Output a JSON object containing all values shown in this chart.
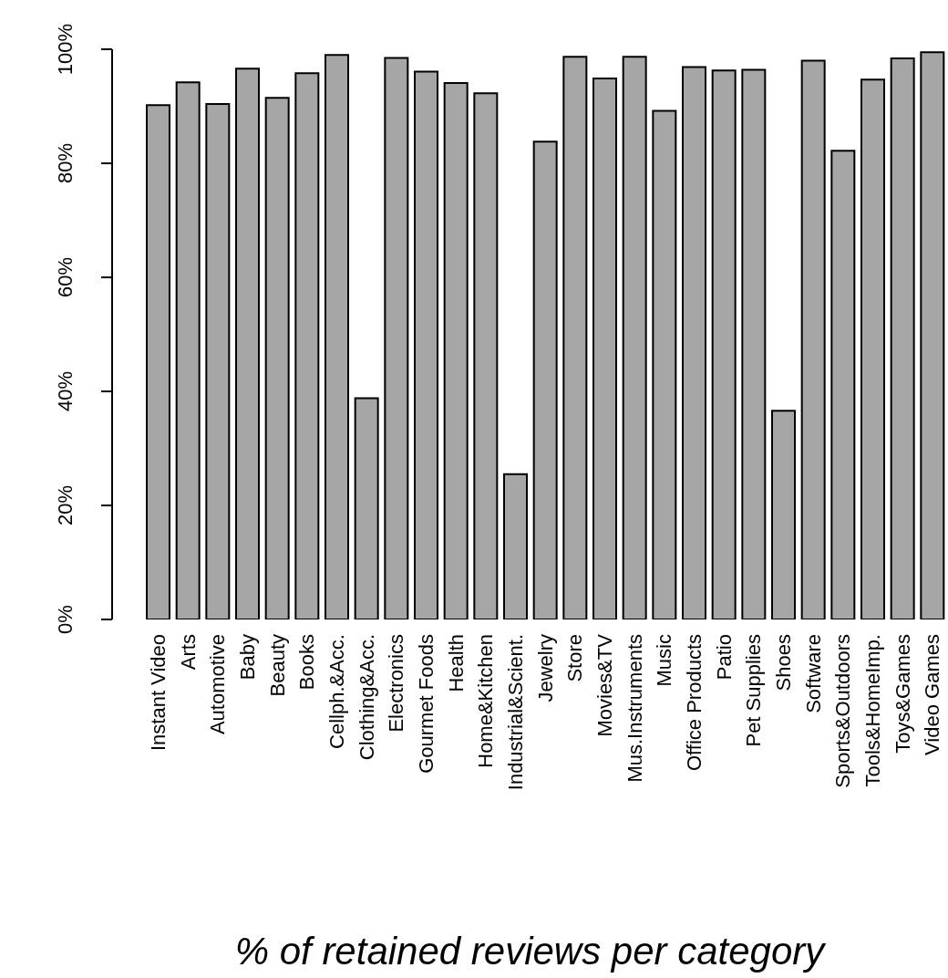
{
  "chart_data": {
    "type": "bar",
    "xlabel": "% of retained reviews per category",
    "categories": [
      "Instant Video",
      "Arts",
      "Automotive",
      "Baby",
      "Beauty",
      "Books",
      "Cellph.&Acc.",
      "Clothing&Acc.",
      "Electronics",
      "Gourmet Foods",
      "Health",
      "Home&Kitchen",
      "Industrial&Scient.",
      "Jewelry",
      "Store",
      "Movies&TV",
      "Mus.Instruments",
      "Music",
      "Office Products",
      "Patio",
      "Pet Supplies",
      "Shoes",
      "Software",
      "Sports&Outdoors",
      "Tools&HomeImp.",
      "Toys&Games",
      "Video Games"
    ],
    "values": [
      90.2,
      94.2,
      90.4,
      96.6,
      91.5,
      95.8,
      99.0,
      38.8,
      98.5,
      96.1,
      94.1,
      92.3,
      25.5,
      83.8,
      98.7,
      94.9,
      98.7,
      89.2,
      96.9,
      96.3,
      96.4,
      36.6,
      98.0,
      82.2,
      94.7,
      98.4,
      99.5
    ],
    "color": "#a6a6a6",
    "ylim": [
      0,
      100
    ],
    "yticks": [
      {
        "value": 0,
        "label": "0%"
      },
      {
        "value": 20,
        "label": "20%"
      },
      {
        "value": 40,
        "label": "40%"
      },
      {
        "value": 60,
        "label": "60%"
      },
      {
        "value": 80,
        "label": "80%"
      },
      {
        "value": 100,
        "label": "100%"
      }
    ],
    "grid": false,
    "legend": false
  }
}
